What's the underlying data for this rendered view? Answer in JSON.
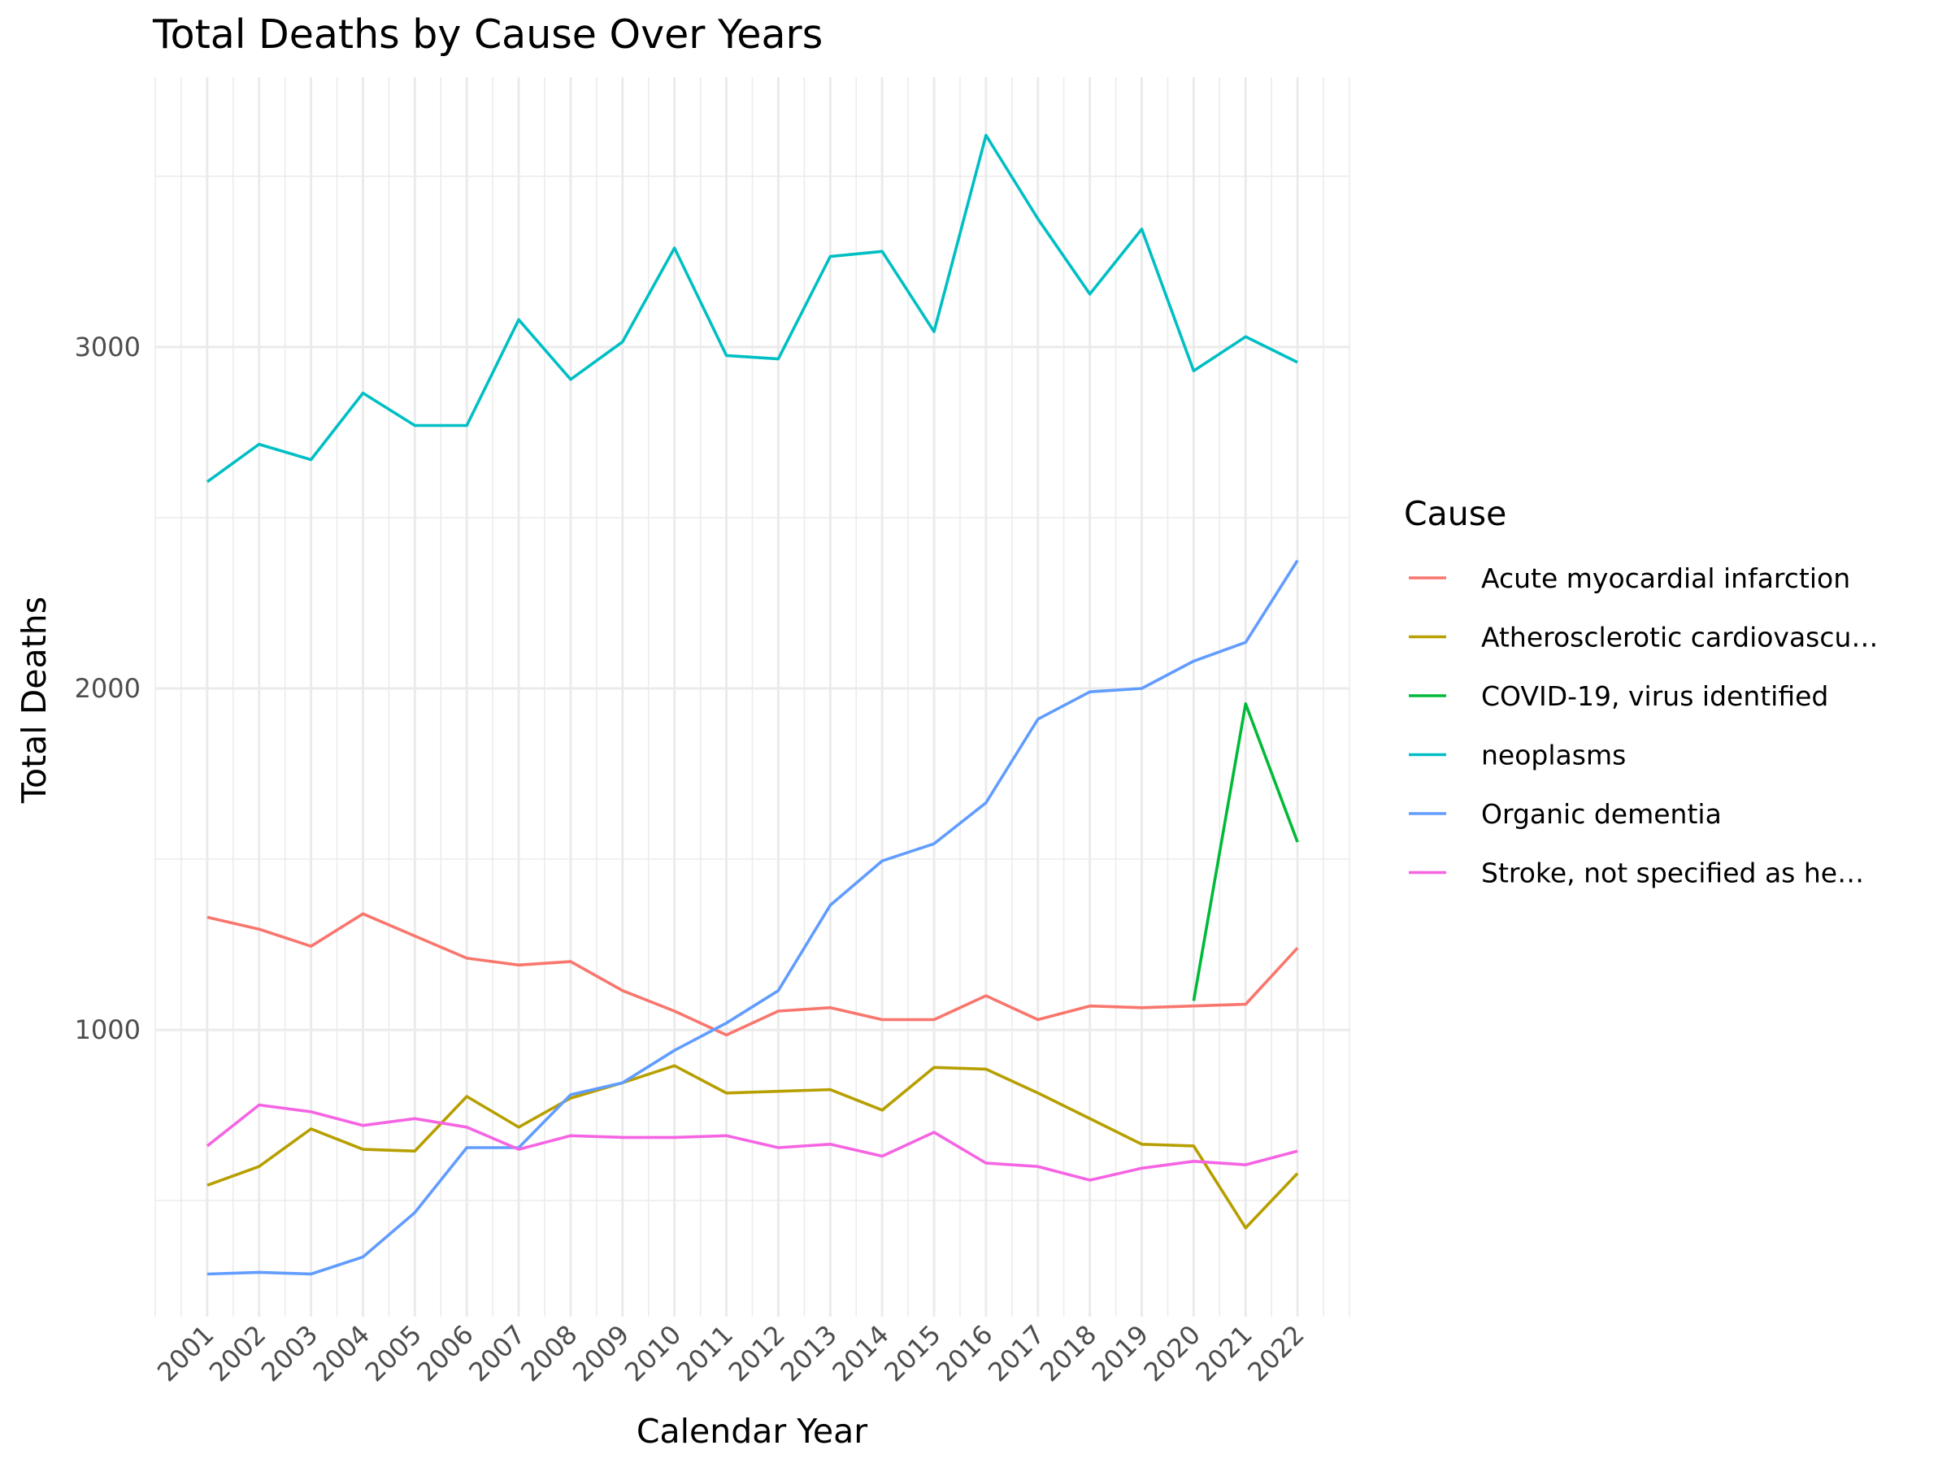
{
  "chart_data": {
    "type": "line",
    "title": "Total Deaths by Cause Over Years",
    "xlabel": "Calendar Year",
    "ylabel": "Total Deaths",
    "x": [
      2001,
      2002,
      2003,
      2004,
      2005,
      2006,
      2007,
      2008,
      2009,
      2010,
      2011,
      2012,
      2013,
      2014,
      2015,
      2016,
      2017,
      2018,
      2019,
      2020,
      2021,
      2022
    ],
    "xlim": [
      2000,
      2023
    ],
    "ylim": [
      160,
      3790
    ],
    "yticks": [
      1000,
      2000,
      3000
    ],
    "grid": true,
    "legend": {
      "title": "Cause",
      "position": "right"
    },
    "series": [
      {
        "name": "Acute myocardial infarction",
        "color": "#F8766D",
        "values": [
          1330,
          1295,
          1245,
          1340,
          1275,
          1210,
          1190,
          1200,
          1115,
          1055,
          985,
          1055,
          1065,
          1030,
          1030,
          1100,
          1030,
          1070,
          1065,
          1070,
          1075,
          1240
        ]
      },
      {
        "name": "Atherosclerotic cardiovascu…",
        "color": "#B79F00",
        "values": [
          545,
          600,
          710,
          650,
          645,
          805,
          715,
          800,
          845,
          895,
          815,
          820,
          825,
          765,
          890,
          885,
          815,
          740,
          665,
          660,
          420,
          580
        ]
      },
      {
        "name": "COVID-19, virus identified",
        "color": "#00BA38",
        "values": [
          null,
          null,
          null,
          null,
          null,
          null,
          null,
          null,
          null,
          null,
          null,
          null,
          null,
          null,
          null,
          null,
          null,
          null,
          null,
          1085,
          1955,
          1550
        ]
      },
      {
        "name": "neoplasms",
        "color": "#00BFC4",
        "values": [
          2605,
          2715,
          2670,
          2865,
          2770,
          2770,
          3080,
          2905,
          3015,
          3290,
          2975,
          2965,
          3265,
          3280,
          3045,
          3620,
          3375,
          3155,
          3345,
          2930,
          3030,
          2955
        ]
      },
      {
        "name": "Organic dementia",
        "color": "#619CFF",
        "values": [
          285,
          290,
          285,
          335,
          465,
          655,
          655,
          810,
          845,
          940,
          1020,
          1115,
          1365,
          1495,
          1545,
          1665,
          1910,
          1990,
          2000,
          2080,
          2135,
          2375
        ]
      },
      {
        "name": "Stroke, not specified as he…",
        "color": "#F564E3",
        "values": [
          660,
          780,
          760,
          720,
          740,
          715,
          650,
          690,
          685,
          685,
          690,
          655,
          665,
          630,
          700,
          610,
          600,
          560,
          595,
          615,
          605,
          645
        ]
      }
    ]
  }
}
